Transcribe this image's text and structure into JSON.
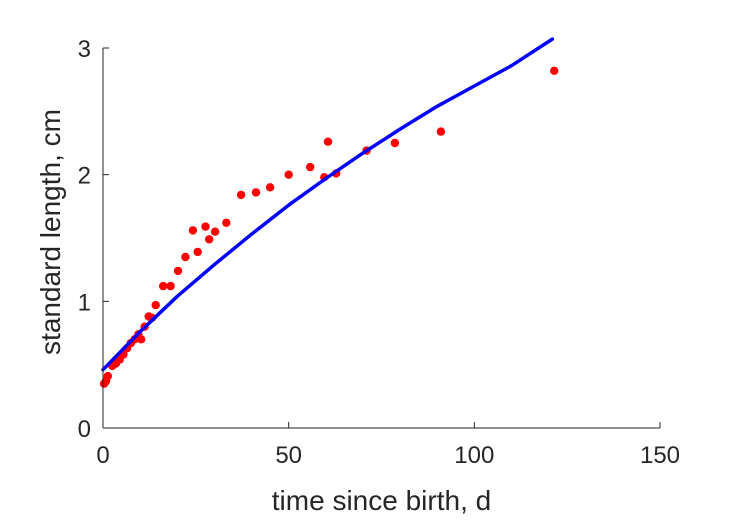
{
  "chart_data": {
    "type": "scatter",
    "xlabel": "time since birth, d",
    "ylabel": "standard length, cm",
    "xlim": [
      0,
      150
    ],
    "ylim": [
      0,
      3
    ],
    "xticks": [
      0,
      50,
      100,
      150
    ],
    "yticks": [
      0,
      1,
      2,
      3
    ],
    "grid": false,
    "series": [
      {
        "kind": "scatter",
        "color": "#ff0000",
        "points": [
          [
            0.3,
            0.35
          ],
          [
            0.8,
            0.37
          ],
          [
            1.3,
            0.41
          ],
          [
            2.5,
            0.49
          ],
          [
            3.5,
            0.51
          ],
          [
            4.5,
            0.54
          ],
          [
            5.5,
            0.58
          ],
          [
            6.5,
            0.63
          ],
          [
            7.5,
            0.67
          ],
          [
            8.5,
            0.7
          ],
          [
            9.5,
            0.74
          ],
          [
            10.3,
            0.7
          ],
          [
            11.2,
            0.8
          ],
          [
            12.3,
            0.88
          ],
          [
            13.2,
            0.87
          ],
          [
            14.2,
            0.97
          ],
          [
            16.2,
            1.12
          ],
          [
            18.2,
            1.12
          ],
          [
            20.2,
            1.24
          ],
          [
            22.2,
            1.35
          ],
          [
            24.2,
            1.56
          ],
          [
            25.5,
            1.39
          ],
          [
            27.6,
            1.59
          ],
          [
            28.6,
            1.49
          ],
          [
            30.2,
            1.55
          ],
          [
            33.2,
            1.62
          ],
          [
            37.2,
            1.84
          ],
          [
            41.2,
            1.86
          ],
          [
            45.0,
            1.9
          ],
          [
            50.0,
            2.0
          ],
          [
            55.8,
            2.06
          ],
          [
            59.6,
            1.98
          ],
          [
            60.6,
            2.26
          ],
          [
            62.8,
            2.01
          ],
          [
            71.0,
            2.19
          ],
          [
            78.6,
            2.25
          ],
          [
            91.0,
            2.34
          ],
          [
            121.5,
            2.82
          ]
        ]
      },
      {
        "kind": "line",
        "color": "#0000ff",
        "x": [
          0,
          10,
          20,
          30,
          40,
          50,
          60,
          70,
          80,
          90,
          100,
          110,
          121
        ],
        "y": [
          0.46,
          0.76,
          1.04,
          1.29,
          1.53,
          1.76,
          1.97,
          2.17,
          2.36,
          2.54,
          2.7,
          2.86,
          3.07
        ]
      }
    ]
  }
}
